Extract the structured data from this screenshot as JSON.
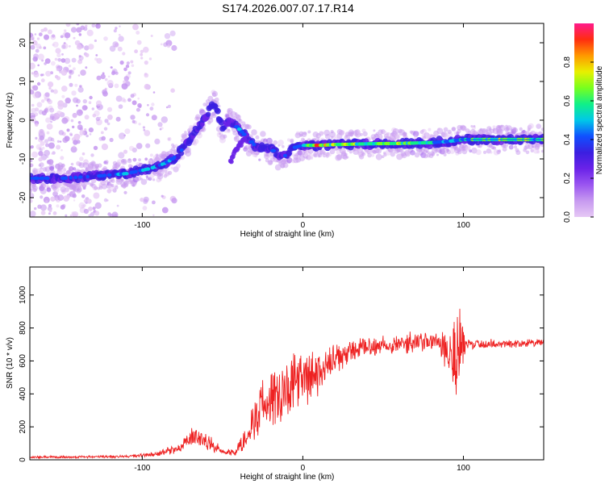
{
  "figure": {
    "title": "S174.2026.007.07.17.R14"
  },
  "colors": {
    "background": "#ffffff",
    "axis": "#000000",
    "snr_line": "#ee2222",
    "colormap": [
      "#e6c8f5",
      "#c79af0",
      "#9a55f0",
      "#6a22e8",
      "#3b1fe0",
      "#1050ff",
      "#00c8e8",
      "#10f088",
      "#78ff1e",
      "#e8f000",
      "#ff9900",
      "#ff2d10",
      "#ff1a8c"
    ]
  },
  "chart_data": [
    {
      "type": "heatmap",
      "xlabel": "Height of straight line (km)",
      "ylabel": "Frequency (Hz)",
      "xlim": [
        -170,
        150
      ],
      "ylim": [
        -25,
        25
      ],
      "xticks": [
        -100,
        0,
        100
      ],
      "yticks": [
        -20,
        -10,
        0,
        10,
        20
      ],
      "grid": false,
      "colorbar": {
        "label": "Normalized spectral amplitude",
        "range": [
          0.0,
          1.0
        ],
        "ticks": [
          "0.0",
          "0.2",
          "0.4",
          "0.6",
          "0.8"
        ],
        "tick_values": [
          0.0,
          0.2,
          0.4,
          0.6,
          0.8
        ]
      },
      "ridge": [
        {
          "x": -170,
          "y": -15,
          "a": 0.35
        },
        {
          "x": -150,
          "y": -15,
          "a": 0.35
        },
        {
          "x": -130,
          "y": -14.5,
          "a": 0.38
        },
        {
          "x": -110,
          "y": -13.8,
          "a": 0.42
        },
        {
          "x": -95,
          "y": -12.5,
          "a": 0.45
        },
        {
          "x": -85,
          "y": -11,
          "a": 0.48
        },
        {
          "x": -78,
          "y": -9,
          "a": 0.35
        },
        {
          "x": -70,
          "y": -5,
          "a": 0.32
        },
        {
          "x": -62,
          "y": 0,
          "a": 0.3
        },
        {
          "x": -55,
          "y": 4.5,
          "a": 0.28
        },
        {
          "x": -50,
          "y": -2,
          "a": 0.35
        },
        {
          "x": -45,
          "y": 0,
          "a": 0.42
        },
        {
          "x": -38,
          "y": -3,
          "a": 0.4
        },
        {
          "x": -30,
          "y": -6.5,
          "a": 0.4
        },
        {
          "x": -20,
          "y": -7.5,
          "a": 0.38
        },
        {
          "x": -12,
          "y": -9.5,
          "a": 0.36
        },
        {
          "x": -5,
          "y": -7,
          "a": 0.42
        },
        {
          "x": 0,
          "y": -6.5,
          "a": 0.5
        },
        {
          "x": 10,
          "y": -6.5,
          "a": 0.75
        },
        {
          "x": 20,
          "y": -6.3,
          "a": 0.6
        },
        {
          "x": 40,
          "y": -6.1,
          "a": 0.62
        },
        {
          "x": 60,
          "y": -6.0,
          "a": 0.6
        },
        {
          "x": 80,
          "y": -5.8,
          "a": 0.55
        },
        {
          "x": 90,
          "y": -5.5,
          "a": 0.5
        },
        {
          "x": 100,
          "y": -5.0,
          "a": 0.55
        },
        {
          "x": 120,
          "y": -5.0,
          "a": 0.62
        },
        {
          "x": 150,
          "y": -5.0,
          "a": 0.6
        }
      ],
      "secondary_branch": [
        {
          "x": -35,
          "y": -4,
          "a": 0.3
        },
        {
          "x": -42,
          "y": -8,
          "a": 0.28
        },
        {
          "x": -45,
          "y": -11,
          "a": 0.25
        }
      ]
    },
    {
      "type": "line",
      "xlabel": "Height of straight line (km)",
      "ylabel": "SNR (10 * v/v)",
      "xlim": [
        -170,
        150
      ],
      "ylim": [
        0,
        1170
      ],
      "xticks": [
        -100,
        0,
        100
      ],
      "yticks": [
        0,
        200,
        400,
        600,
        800,
        1000
      ],
      "grid": false,
      "series": [
        {
          "envelope": [
            {
              "x": -170,
              "mean": 15,
              "amp": 8
            },
            {
              "x": -110,
              "mean": 20,
              "amp": 10
            },
            {
              "x": -90,
              "mean": 35,
              "amp": 18
            },
            {
              "x": -75,
              "mean": 80,
              "amp": 40
            },
            {
              "x": -68,
              "mean": 150,
              "amp": 70
            },
            {
              "x": -60,
              "mean": 110,
              "amp": 60
            },
            {
              "x": -50,
              "mean": 50,
              "amp": 25
            },
            {
              "x": -42,
              "mean": 45,
              "amp": 25
            },
            {
              "x": -36,
              "mean": 130,
              "amp": 90
            },
            {
              "x": -30,
              "mean": 260,
              "amp": 160
            },
            {
              "x": -20,
              "mean": 380,
              "amp": 230
            },
            {
              "x": -10,
              "mean": 440,
              "amp": 230
            },
            {
              "x": 0,
              "mean": 480,
              "amp": 200
            },
            {
              "x": 10,
              "mean": 520,
              "amp": 160
            },
            {
              "x": 20,
              "mean": 600,
              "amp": 110
            },
            {
              "x": 30,
              "mean": 660,
              "amp": 80
            },
            {
              "x": 50,
              "mean": 700,
              "amp": 70
            },
            {
              "x": 70,
              "mean": 710,
              "amp": 75
            },
            {
              "x": 85,
              "mean": 720,
              "amp": 70
            },
            {
              "x": 95,
              "mean": 650,
              "amp": 450
            },
            {
              "x": 102,
              "mean": 700,
              "amp": 40
            },
            {
              "x": 150,
              "mean": 710,
              "amp": 25
            }
          ]
        }
      ]
    }
  ]
}
